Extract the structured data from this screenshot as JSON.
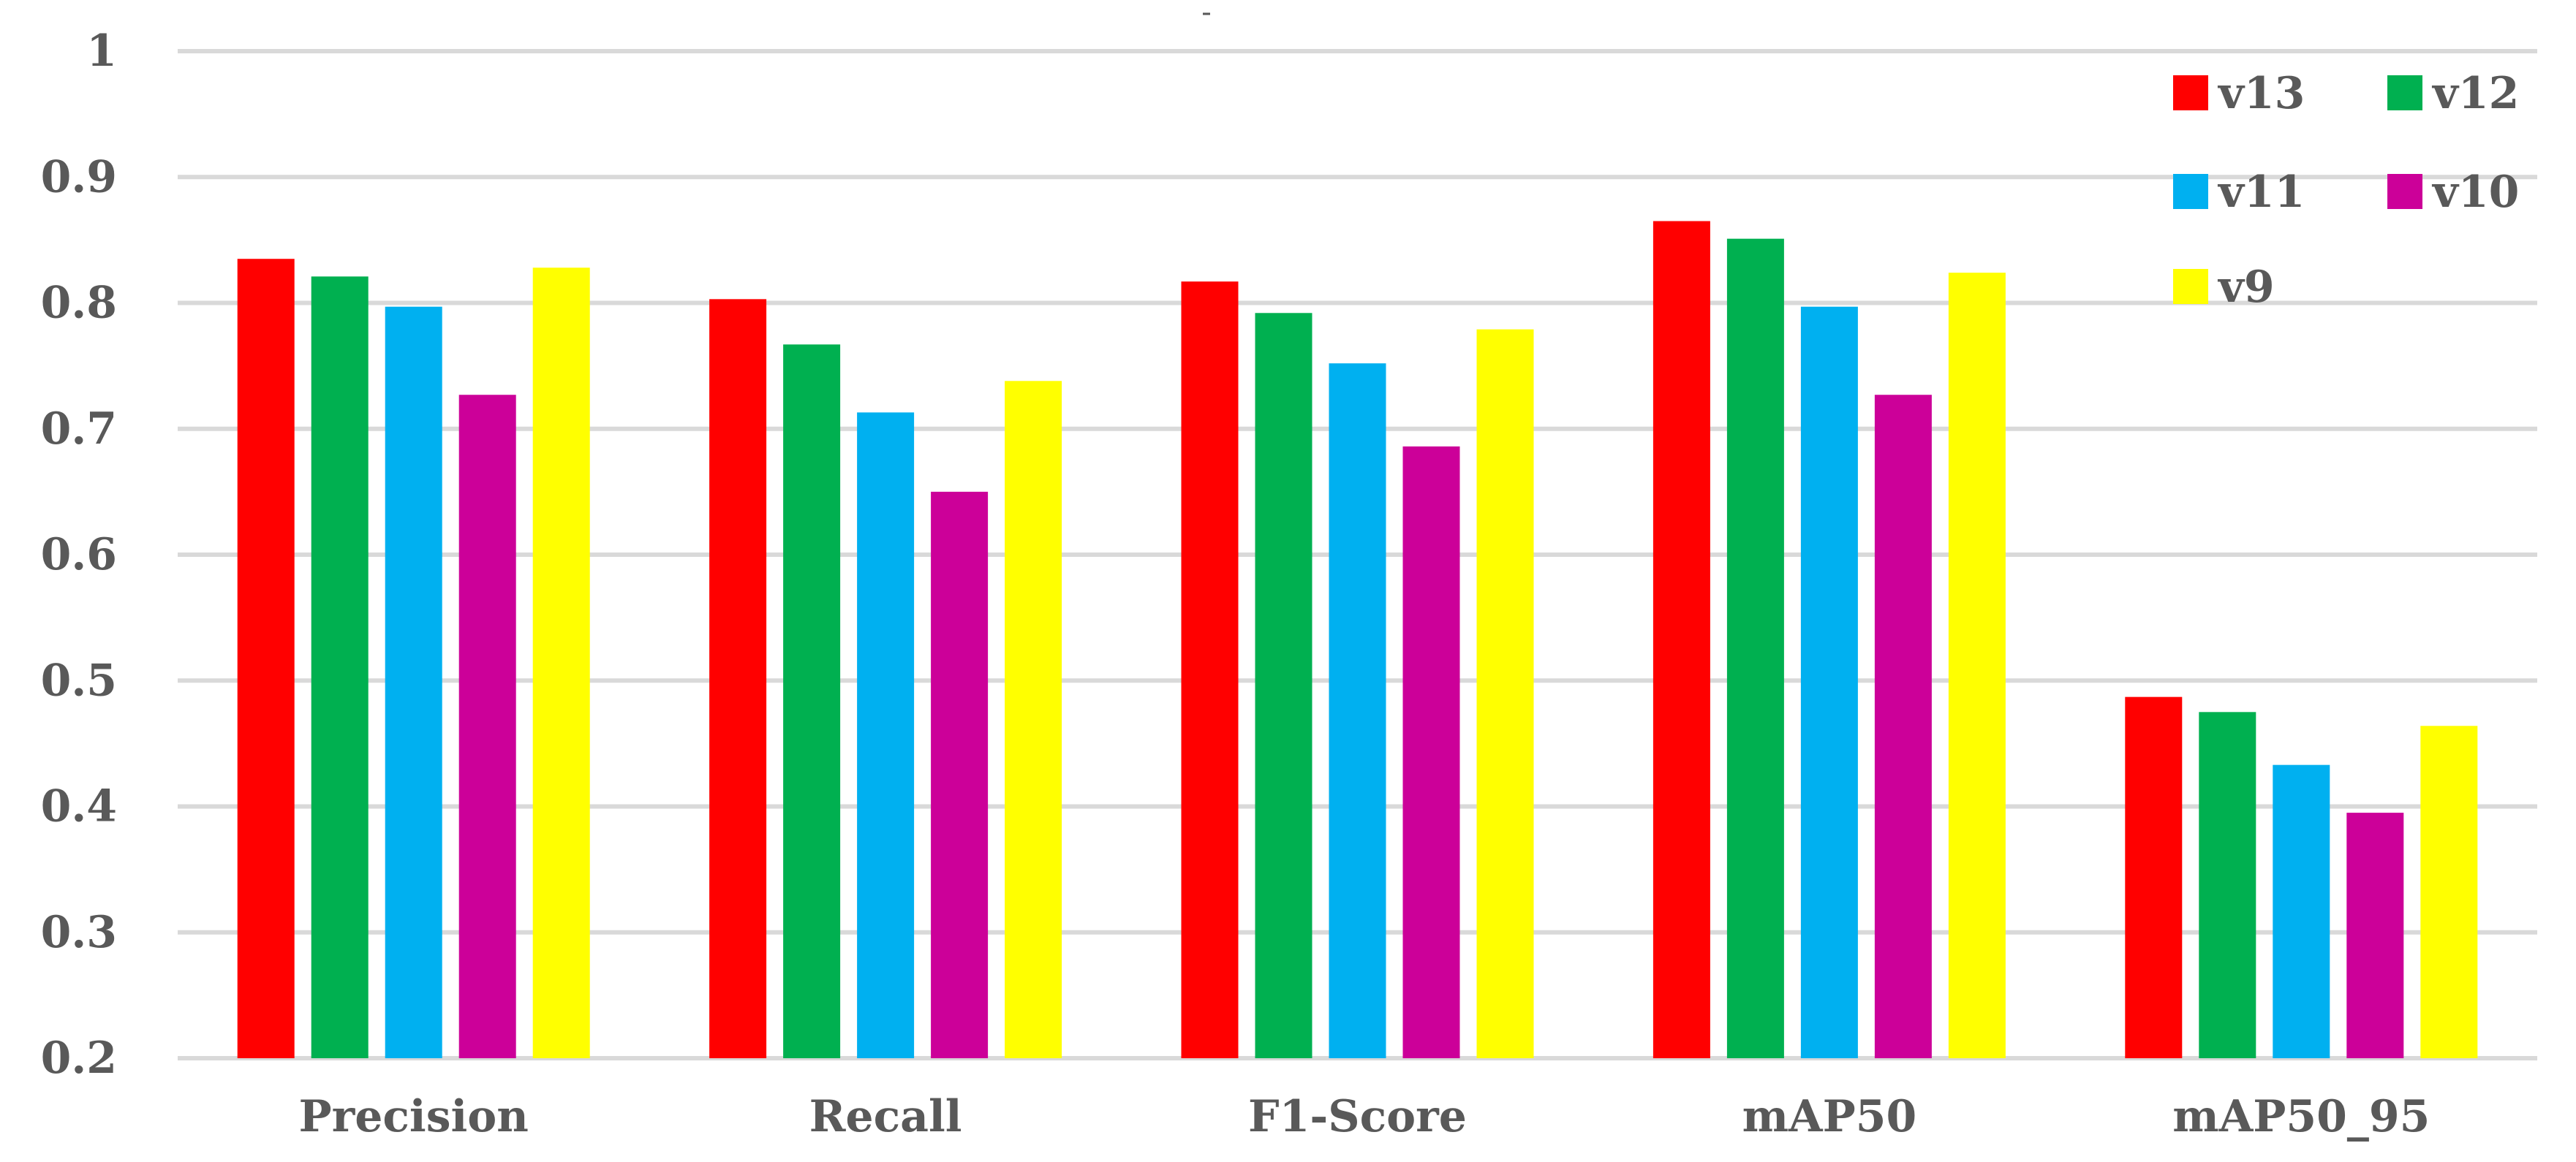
{
  "chart_data": {
    "type": "bar",
    "title": "-",
    "categories": [
      "Precision",
      "Recall",
      "F1-Score",
      "mAP50",
      "mAP50_95"
    ],
    "series": [
      {
        "name": "v13",
        "color": "#FF0000",
        "values": [
          0.835,
          0.803,
          0.817,
          0.865,
          0.487
        ]
      },
      {
        "name": "v12",
        "color": "#00B050",
        "values": [
          0.821,
          0.767,
          0.792,
          0.851,
          0.475
        ]
      },
      {
        "name": "v11",
        "color": "#00B0F0",
        "values": [
          0.797,
          0.713,
          0.752,
          0.797,
          0.433
        ]
      },
      {
        "name": "v10",
        "color": "#CC0099",
        "values": [
          0.727,
          0.65,
          0.686,
          0.727,
          0.395
        ]
      },
      {
        "name": "v9",
        "color": "#FFFF00",
        "values": [
          0.828,
          0.738,
          0.779,
          0.824,
          0.464
        ]
      }
    ],
    "ylim": [
      0.2,
      1.0
    ],
    "yticks": [
      "0.2",
      "0.3",
      "0.4",
      "0.5",
      "0.6",
      "0.7",
      "0.8",
      "0.9",
      "1"
    ],
    "grid": true,
    "legend_position": "top-right",
    "xlabel": "",
    "ylabel": ""
  }
}
